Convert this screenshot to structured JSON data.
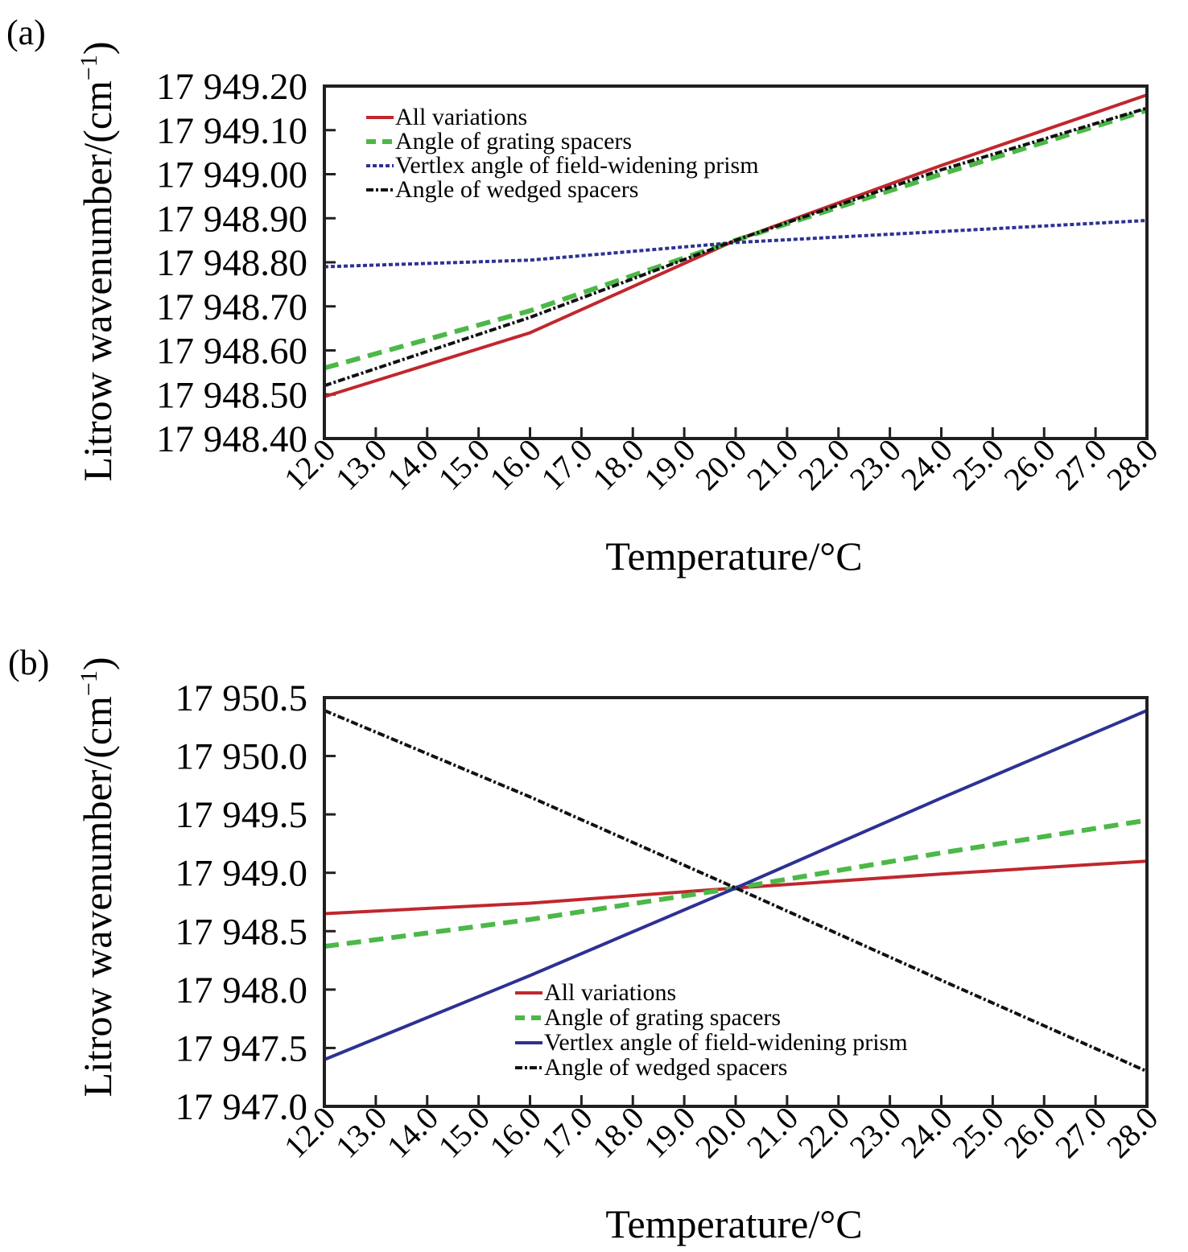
{
  "chart_data": [
    {
      "type": "line",
      "panel_label": "(a)",
      "title": "",
      "xlabel": "Temperature/°C",
      "ylabel_main": "Litrow wavenumber/(cm",
      "ylabel_sup": "−1",
      "ylabel_close": ")",
      "xlim": [
        12.0,
        28.0
      ],
      "ylim": [
        17948.4,
        17949.2
      ],
      "xticks": [
        "12.0",
        "13.0",
        "14.0",
        "15.0",
        "16.0",
        "17.0",
        "18.0",
        "19.0",
        "20.0",
        "21.0",
        "22.0",
        "23.0",
        "24.0",
        "25.0",
        "26.0",
        "27.0",
        "28.0"
      ],
      "yticks": [
        "17 949.20",
        "17 949.10",
        "17 949.00",
        "17 948.90",
        "17 948.80",
        "17 948.70",
        "17 948.60",
        "17 948.50",
        "17 948.40"
      ],
      "grid": false,
      "legend_position": "top-left",
      "x": [
        12,
        16,
        20,
        24,
        28
      ],
      "series": [
        {
          "name": "All variations",
          "style": "solid",
          "color": "#c0272d",
          "values": [
            17948.495,
            17948.64,
            17948.85,
            17949.02,
            17949.18
          ]
        },
        {
          "name": "Angle of grating spacers",
          "style": "dashed",
          "color": "#4cb848",
          "values": [
            17948.56,
            17948.69,
            17948.85,
            17949.0,
            17949.145
          ]
        },
        {
          "name": "Vertlex angle of field-widening prism",
          "style": "dotted",
          "color": "#2e3192",
          "values": [
            17948.79,
            17948.805,
            17948.845,
            17948.87,
            17948.895
          ]
        },
        {
          "name": "Angle of wedged spacers",
          "style": "dashdot",
          "color": "#111111",
          "values": [
            17948.52,
            17948.675,
            17948.85,
            17949.01,
            17949.15
          ]
        }
      ]
    },
    {
      "type": "line",
      "panel_label": "(b)",
      "title": "",
      "xlabel": "Temperature/°C",
      "ylabel_main": "Litrow wavenumber/(cm",
      "ylabel_sup": "−1",
      "ylabel_close": ")",
      "xlim": [
        12.0,
        28.0
      ],
      "ylim": [
        17947.0,
        17950.5
      ],
      "xticks": [
        "12.0",
        "13.0",
        "14.0",
        "15.0",
        "16.0",
        "17.0",
        "18.0",
        "19.0",
        "20.0",
        "21.0",
        "22.0",
        "23.0",
        "24.0",
        "25.0",
        "26.0",
        "27.0",
        "28.0"
      ],
      "yticks": [
        "17 950.5",
        "17 950.0",
        "17 949.5",
        "17 949.0",
        "17 948.5",
        "17 948.0",
        "17 947.5",
        "17 947.0"
      ],
      "grid": false,
      "legend_position": "bottom-center",
      "x": [
        12,
        16,
        20,
        24,
        28
      ],
      "series": [
        {
          "name": "All variations",
          "style": "solid",
          "color": "#c0272d",
          "values": [
            17948.65,
            17948.74,
            17948.87,
            17948.99,
            17949.1
          ]
        },
        {
          "name": "Angle of grating spacers",
          "style": "dashed",
          "color": "#4cb848",
          "values": [
            17948.37,
            17948.6,
            17948.87,
            17949.17,
            17949.45
          ]
        },
        {
          "name": "Vertlex angle of field-widening prism",
          "style": "solid",
          "color": "#2e3192",
          "values": [
            17947.4,
            17948.12,
            17948.87,
            17949.64,
            17950.39
          ]
        },
        {
          "name": "Angle of wedged spacers",
          "style": "dashdot",
          "color": "#111111",
          "values": [
            17950.39,
            17949.65,
            17948.87,
            17948.08,
            17947.3
          ]
        }
      ]
    }
  ]
}
